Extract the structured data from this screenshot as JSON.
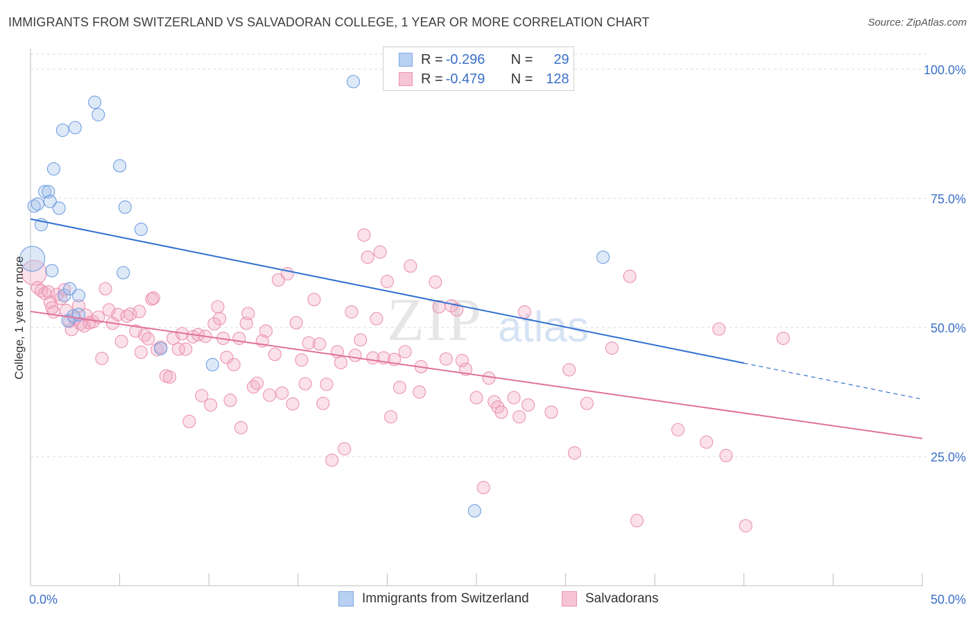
{
  "title": "IMMIGRANTS FROM SWITZERLAND VS SALVADORAN COLLEGE, 1 YEAR OR MORE CORRELATION CHART",
  "source": "Source: ZipAtlas.com",
  "watermark": {
    "zip": "ZIP",
    "atlas": "atlas"
  },
  "legend": {
    "series1": {
      "r_label": "R =",
      "r_value": "-0.296",
      "n_label": "N =",
      "n_value": "29"
    },
    "series2": {
      "r_label": "R =",
      "r_value": "-0.479",
      "n_label": "N =",
      "n_value": "128"
    }
  },
  "chart_data": {
    "type": "scatter",
    "title": "IMMIGRANTS FROM SWITZERLAND VS SALVADORAN COLLEGE, 1 YEAR OR MORE CORRELATION CHART",
    "xlabel": "",
    "ylabel": "College, 1 year or more",
    "xlim": [
      0,
      50
    ],
    "ylim": [
      0,
      104
    ],
    "x_tick_labels": [
      "0.0%",
      "50.0%"
    ],
    "y_ticks": [
      25,
      50,
      75,
      100
    ],
    "y_tick_labels": [
      "25.0%",
      "50.0%",
      "75.0%",
      "100.0%"
    ],
    "grid": true,
    "legend_position": "top-center",
    "colors": {
      "switzerland": "#6f9de0",
      "salvadoran": "#ec92b2",
      "switzerland_line": "#2f6fd0",
      "salvadoran_line": "#e0709a"
    },
    "series": [
      {
        "name": "Immigrants from Switzerland",
        "trend": {
          "x": [
            0,
            40
          ],
          "y": [
            71,
            43.1
          ],
          "dashed_to": [
            50,
            36.1
          ]
        },
        "points": [
          [
            0.1,
            63.3
          ],
          [
            0.2,
            73.5
          ],
          [
            0.4,
            73.9
          ],
          [
            0.6,
            69.9
          ],
          [
            0.8,
            76.3
          ],
          [
            1.0,
            76.3
          ],
          [
            1.1,
            74.4
          ],
          [
            1.2,
            61.0
          ],
          [
            1.3,
            80.7
          ],
          [
            1.6,
            73.1
          ],
          [
            1.8,
            88.2
          ],
          [
            1.9,
            56.2
          ],
          [
            2.1,
            51.3
          ],
          [
            2.2,
            57.5
          ],
          [
            2.4,
            52.2
          ],
          [
            2.5,
            88.7
          ],
          [
            2.7,
            56.2
          ],
          [
            2.7,
            52.5
          ],
          [
            3.6,
            93.6
          ],
          [
            3.8,
            91.2
          ],
          [
            5.0,
            81.3
          ],
          [
            5.2,
            60.6
          ],
          [
            5.3,
            73.3
          ],
          [
            6.2,
            69.0
          ],
          [
            7.3,
            45.9
          ],
          [
            10.2,
            42.8
          ],
          [
            18.1,
            97.6
          ],
          [
            24.9,
            14.5
          ],
          [
            32.1,
            63.6
          ]
        ]
      },
      {
        "name": "Salvadorans",
        "trend": {
          "x": [
            0,
            50
          ],
          "y": [
            53.1,
            28.5
          ]
        },
        "points": [
          [
            0.2,
            60.6
          ],
          [
            0.4,
            57.7
          ],
          [
            0.6,
            57.1
          ],
          [
            0.8,
            56.6
          ],
          [
            1.0,
            56.9
          ],
          [
            1.1,
            54.9
          ],
          [
            1.2,
            53.8
          ],
          [
            1.3,
            53.0
          ],
          [
            1.5,
            56.4
          ],
          [
            1.7,
            55.6
          ],
          [
            1.9,
            57.3
          ],
          [
            2.0,
            53.3
          ],
          [
            2.2,
            51.2
          ],
          [
            2.3,
            49.6
          ],
          [
            2.5,
            51.7
          ],
          [
            2.7,
            54.2
          ],
          [
            2.8,
            50.7
          ],
          [
            3.0,
            50.3
          ],
          [
            3.1,
            52.4
          ],
          [
            3.3,
            50.9
          ],
          [
            3.5,
            51.1
          ],
          [
            3.8,
            52.0
          ],
          [
            4.0,
            44.0
          ],
          [
            4.2,
            57.5
          ],
          [
            4.4,
            53.4
          ],
          [
            4.6,
            50.8
          ],
          [
            4.9,
            52.5
          ],
          [
            5.1,
            47.3
          ],
          [
            5.4,
            52.2
          ],
          [
            5.6,
            52.6
          ],
          [
            5.9,
            49.3
          ],
          [
            6.1,
            53.1
          ],
          [
            6.2,
            45.2
          ],
          [
            6.4,
            48.5
          ],
          [
            6.6,
            47.8
          ],
          [
            6.8,
            55.5
          ],
          [
            6.9,
            55.7
          ],
          [
            7.1,
            45.7
          ],
          [
            7.3,
            46.2
          ],
          [
            7.6,
            40.6
          ],
          [
            7.8,
            40.4
          ],
          [
            8.0,
            47.9
          ],
          [
            8.3,
            45.8
          ],
          [
            8.5,
            48.8
          ],
          [
            8.7,
            45.8
          ],
          [
            8.9,
            31.8
          ],
          [
            9.1,
            48.2
          ],
          [
            9.4,
            48.6
          ],
          [
            9.6,
            36.8
          ],
          [
            9.8,
            48.3
          ],
          [
            10.1,
            35.0
          ],
          [
            10.3,
            50.7
          ],
          [
            10.5,
            54.0
          ],
          [
            10.6,
            51.7
          ],
          [
            10.8,
            47.9
          ],
          [
            11.0,
            44.2
          ],
          [
            11.2,
            35.9
          ],
          [
            11.4,
            42.8
          ],
          [
            11.7,
            47.9
          ],
          [
            11.8,
            30.6
          ],
          [
            12.1,
            50.8
          ],
          [
            12.2,
            52.7
          ],
          [
            12.5,
            38.5
          ],
          [
            12.7,
            39.2
          ],
          [
            13.0,
            47.4
          ],
          [
            13.2,
            49.3
          ],
          [
            13.4,
            36.9
          ],
          [
            13.7,
            44.8
          ],
          [
            13.9,
            59.2
          ],
          [
            14.1,
            37.3
          ],
          [
            14.4,
            60.4
          ],
          [
            14.7,
            35.2
          ],
          [
            14.9,
            50.9
          ],
          [
            15.2,
            43.7
          ],
          [
            15.4,
            39.1
          ],
          [
            15.6,
            47.0
          ],
          [
            15.9,
            55.4
          ],
          [
            16.2,
            46.8
          ],
          [
            16.4,
            35.3
          ],
          [
            16.6,
            39.0
          ],
          [
            16.9,
            24.3
          ],
          [
            17.2,
            45.3
          ],
          [
            17.4,
            43.2
          ],
          [
            17.6,
            26.5
          ],
          [
            18.0,
            53.0
          ],
          [
            18.2,
            44.6
          ],
          [
            18.5,
            47.6
          ],
          [
            18.7,
            67.9
          ],
          [
            18.9,
            63.6
          ],
          [
            19.2,
            44.1
          ],
          [
            19.4,
            51.7
          ],
          [
            19.6,
            64.6
          ],
          [
            19.8,
            44.1
          ],
          [
            20.0,
            58.9
          ],
          [
            20.2,
            32.7
          ],
          [
            20.4,
            43.8
          ],
          [
            20.7,
            38.4
          ],
          [
            21.0,
            45.3
          ],
          [
            21.3,
            61.9
          ],
          [
            21.8,
            37.5
          ],
          [
            21.9,
            42.4
          ],
          [
            22.7,
            58.8
          ],
          [
            22.9,
            54.0
          ],
          [
            23.3,
            43.9
          ],
          [
            23.6,
            54.2
          ],
          [
            23.9,
            53.4
          ],
          [
            24.2,
            43.6
          ],
          [
            24.4,
            41.9
          ],
          [
            25.0,
            36.4
          ],
          [
            25.4,
            19.0
          ],
          [
            25.7,
            40.2
          ],
          [
            26.0,
            35.6
          ],
          [
            26.2,
            34.6
          ],
          [
            26.4,
            33.6
          ],
          [
            27.1,
            36.4
          ],
          [
            27.4,
            32.7
          ],
          [
            27.7,
            53.0
          ],
          [
            27.9,
            35.0
          ],
          [
            29.2,
            33.6
          ],
          [
            30.2,
            41.8
          ],
          [
            30.5,
            25.7
          ],
          [
            31.2,
            35.3
          ],
          [
            32.6,
            46.0
          ],
          [
            33.6,
            59.9
          ],
          [
            34.0,
            12.6
          ],
          [
            36.3,
            30.2
          ],
          [
            37.9,
            27.8
          ],
          [
            38.6,
            49.7
          ],
          [
            39.0,
            25.2
          ],
          [
            40.1,
            11.6
          ],
          [
            42.2,
            47.9
          ]
        ]
      }
    ]
  }
}
